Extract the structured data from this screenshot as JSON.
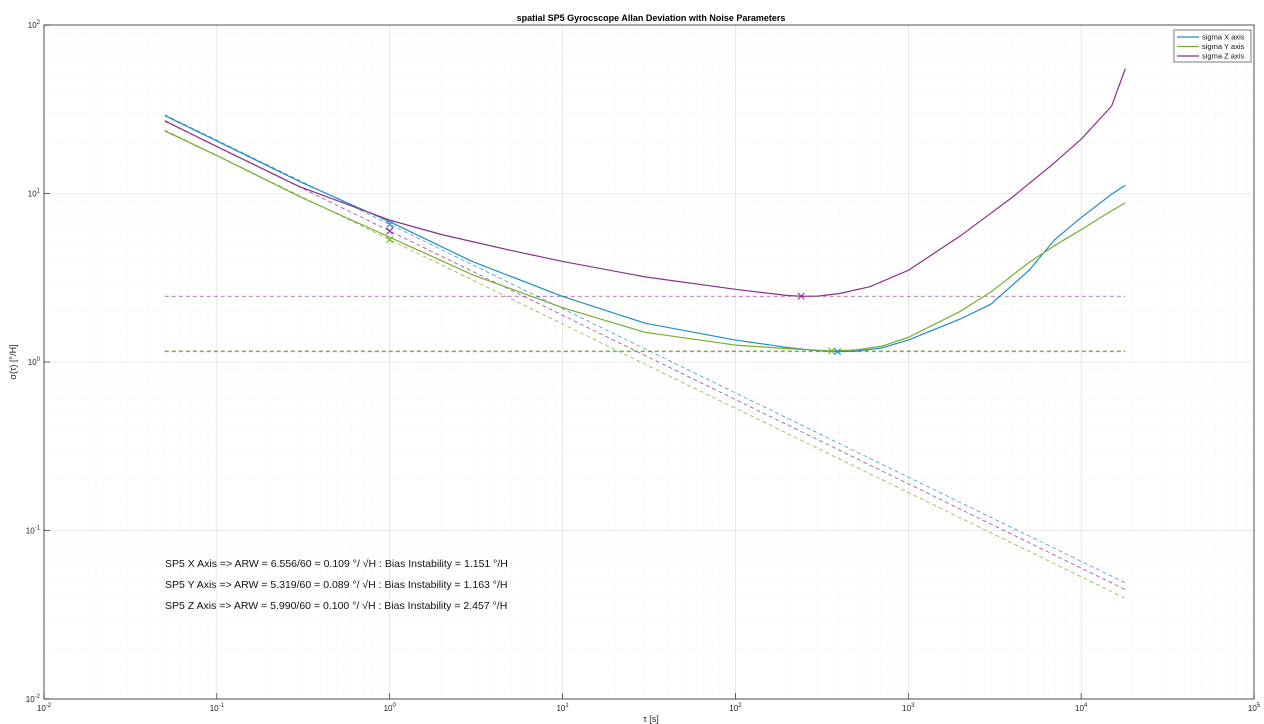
{
  "chart_data": {
    "type": "line",
    "title": "spatial SP5 Gyrocscope Allan Deviation with Noise Parameters",
    "xlabel": "τ [s]",
    "ylabel": "σ(τ) [°/H]",
    "xscale": "log",
    "yscale": "log",
    "xlim": [
      0.01,
      100000
    ],
    "ylim": [
      0.01,
      100
    ],
    "grid": true,
    "legend_position": "top-right",
    "xticks": [
      {
        "value": 0.01,
        "base": "10",
        "exp": "-2"
      },
      {
        "value": 0.1,
        "base": "10",
        "exp": "-1"
      },
      {
        "value": 1,
        "base": "10",
        "exp": "0"
      },
      {
        "value": 10,
        "base": "10",
        "exp": "1"
      },
      {
        "value": 100,
        "base": "10",
        "exp": "2"
      },
      {
        "value": 1000,
        "base": "10",
        "exp": "3"
      },
      {
        "value": 10000,
        "base": "10",
        "exp": "4"
      },
      {
        "value": 100000,
        "base": "10",
        "exp": "5"
      }
    ],
    "yticks": [
      {
        "value": 0.01,
        "base": "10",
        "exp": "-2"
      },
      {
        "value": 0.1,
        "base": "10",
        "exp": "-1"
      },
      {
        "value": 1,
        "base": "10",
        "exp": "0"
      },
      {
        "value": 10,
        "base": "10",
        "exp": "1"
      },
      {
        "value": 100,
        "base": "10",
        "exp": "2"
      }
    ],
    "series": [
      {
        "name": "sigma X axis",
        "color": "#1f8dc8",
        "points": [
          [
            0.05,
            29
          ],
          [
            0.1,
            20.5
          ],
          [
            0.3,
            11.8
          ],
          [
            1,
            6.8
          ],
          [
            3,
            3.95
          ],
          [
            10,
            2.45
          ],
          [
            30,
            1.7
          ],
          [
            100,
            1.35
          ],
          [
            200,
            1.22
          ],
          [
            300,
            1.165
          ],
          [
            390,
            1.151
          ],
          [
            500,
            1.16
          ],
          [
            700,
            1.21
          ],
          [
            1000,
            1.35
          ],
          [
            2000,
            1.8
          ],
          [
            3000,
            2.2
          ],
          [
            5000,
            3.5
          ],
          [
            7000,
            5.3
          ],
          [
            10000,
            7.2
          ],
          [
            15000,
            9.9
          ],
          [
            18000,
            11.2
          ]
        ]
      },
      {
        "name": "sigma Y axis",
        "color": "#77ac30",
        "points": [
          [
            0.05,
            23.5
          ],
          [
            0.1,
            16.8
          ],
          [
            0.3,
            9.6
          ],
          [
            1,
            5.5
          ],
          [
            3,
            3.3
          ],
          [
            10,
            2.1
          ],
          [
            30,
            1.5
          ],
          [
            100,
            1.26
          ],
          [
            200,
            1.2
          ],
          [
            360,
            1.163
          ],
          [
            500,
            1.18
          ],
          [
            700,
            1.24
          ],
          [
            1000,
            1.4
          ],
          [
            2000,
            2.0
          ],
          [
            3000,
            2.6
          ],
          [
            5000,
            3.9
          ],
          [
            7000,
            4.9
          ],
          [
            10000,
            6.1
          ],
          [
            15000,
            7.9
          ],
          [
            18000,
            8.8
          ]
        ]
      },
      {
        "name": "sigma Z axis",
        "color": "#8b2f8f",
        "points": [
          [
            0.05,
            27
          ],
          [
            0.1,
            19
          ],
          [
            0.3,
            11
          ],
          [
            1,
            6.95
          ],
          [
            2,
            5.7
          ],
          [
            5,
            4.6
          ],
          [
            10,
            3.95
          ],
          [
            30,
            3.2
          ],
          [
            100,
            2.7
          ],
          [
            200,
            2.48
          ],
          [
            240,
            2.457
          ],
          [
            300,
            2.46
          ],
          [
            400,
            2.55
          ],
          [
            600,
            2.8
          ],
          [
            1000,
            3.5
          ],
          [
            2000,
            5.6
          ],
          [
            4000,
            9.5
          ],
          [
            7000,
            15.2
          ],
          [
            10000,
            21
          ],
          [
            15000,
            33
          ],
          [
            18000,
            55
          ]
        ]
      }
    ],
    "reference_lines": [
      {
        "series": "sigma X axis",
        "type": "arw",
        "color": "#1f8dc8",
        "points": [
          [
            0.05,
            29.3
          ],
          [
            18000,
            0.0489
          ]
        ]
      },
      {
        "series": "sigma Y axis",
        "type": "arw",
        "color": "#77ac30",
        "points": [
          [
            0.05,
            23.8
          ],
          [
            18000,
            0.0396
          ]
        ]
      },
      {
        "series": "sigma Z axis",
        "type": "arw",
        "color": "#8b2f8f",
        "points": [
          [
            0.05,
            26.8
          ],
          [
            18000,
            0.0446
          ]
        ]
      },
      {
        "series": "sigma X axis",
        "type": "bias",
        "color": "#1f8dc8",
        "points": [
          [
            0.05,
            1.151
          ],
          [
            18000,
            1.151
          ]
        ]
      },
      {
        "series": "sigma Y axis",
        "type": "bias",
        "color": "#77ac30",
        "points": [
          [
            0.05,
            1.163
          ],
          [
            18000,
            1.163
          ]
        ]
      },
      {
        "series": "sigma Z axis",
        "type": "bias",
        "color": "#8b2f8f",
        "points": [
          [
            0.05,
            2.457
          ],
          [
            18000,
            2.457
          ]
        ]
      }
    ],
    "markers": [
      {
        "series": "sigma X axis",
        "color": "#1f8dc8",
        "x": 1,
        "y": 6.556
      },
      {
        "series": "sigma Y axis",
        "color": "#77ac30",
        "x": 1,
        "y": 5.319
      },
      {
        "series": "sigma Z axis",
        "color": "#8b2f8f",
        "x": 1,
        "y": 5.99
      },
      {
        "series": "sigma X axis",
        "color": "#1f8dc8",
        "x": 390,
        "y": 1.151
      },
      {
        "series": "sigma Y axis",
        "color": "#77ac30",
        "x": 360,
        "y": 1.163
      },
      {
        "series": "sigma Z axis",
        "color": "#8b2f8f",
        "x": 240,
        "y": 2.457
      }
    ],
    "annotations": [
      "SP5 X Axis => ARW = 6.556/60 = 0.109 °/ √H  :  Bias Instability = 1.151 °/H",
      "SP5 Y Axis => ARW = 5.319/60 = 0.089 °/ √H  :  Bias Instability = 1.163 °/H",
      "SP5 Z Axis => ARW = 5.990/60 = 0.100 °/ √H  :  Bias Instability = 2.457 °/H"
    ]
  }
}
